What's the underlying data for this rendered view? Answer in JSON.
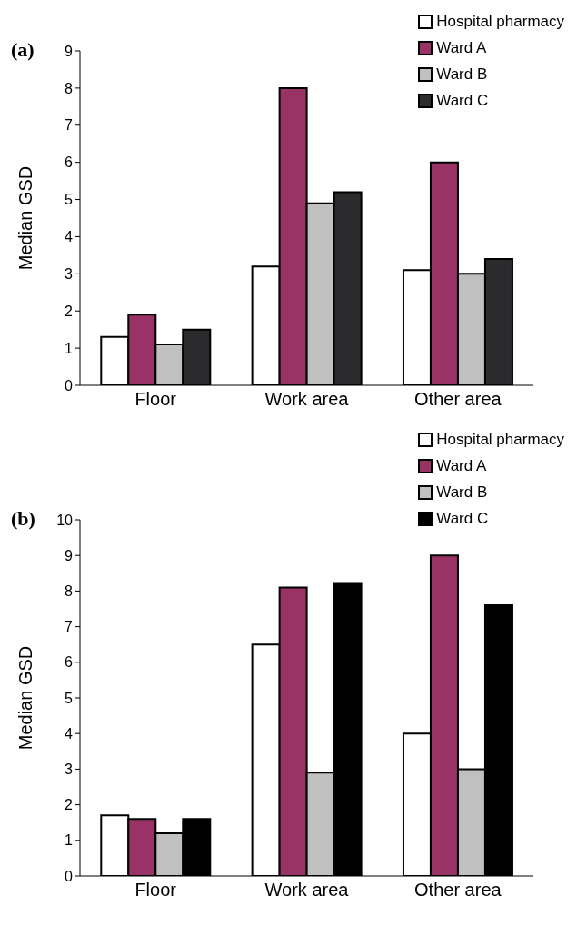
{
  "chart_data": [
    {
      "type": "bar",
      "title": "(a)",
      "ylabel": "Median GSD",
      "categories": [
        "Floor",
        "Work area",
        "Other area"
      ],
      "series": [
        {
          "name": "Hospital pharmacy",
          "color": "#ffffff",
          "values": [
            1.3,
            3.2,
            3.1
          ]
        },
        {
          "name": "Ward A",
          "color": "#993366",
          "values": [
            1.9,
            8.0,
            6.0
          ]
        },
        {
          "name": "Ward B",
          "color": "#c0c0c0",
          "values": [
            1.1,
            4.9,
            3.0
          ]
        },
        {
          "name": "Ward C",
          "color": "#2b2b2d",
          "values": [
            1.5,
            5.2,
            3.4
          ]
        }
      ],
      "ylim": [
        0,
        9
      ],
      "yticks": [
        0,
        1,
        2,
        3,
        4,
        5,
        6,
        7,
        8,
        9
      ],
      "grid": false,
      "legend": "top right"
    },
    {
      "type": "bar",
      "title": "(b)",
      "ylabel": "Median GSD",
      "categories": [
        "Floor",
        "Work area",
        "Other area"
      ],
      "series": [
        {
          "name": "Hospital pharmacy",
          "color": "#ffffff",
          "values": [
            1.7,
            6.5,
            4.0
          ]
        },
        {
          "name": "Ward A",
          "color": "#993366",
          "values": [
            1.6,
            8.1,
            9.0
          ]
        },
        {
          "name": "Ward B",
          "color": "#c0c0c0",
          "values": [
            1.2,
            2.9,
            3.0
          ]
        },
        {
          "name": "Ward C",
          "color": "#000000",
          "values": [
            1.6,
            8.2,
            7.6
          ]
        }
      ],
      "ylim": [
        0,
        10
      ],
      "yticks": [
        0,
        1,
        2,
        3,
        4,
        5,
        6,
        7,
        8,
        9,
        10
      ],
      "grid": false,
      "legend": "top right"
    }
  ]
}
